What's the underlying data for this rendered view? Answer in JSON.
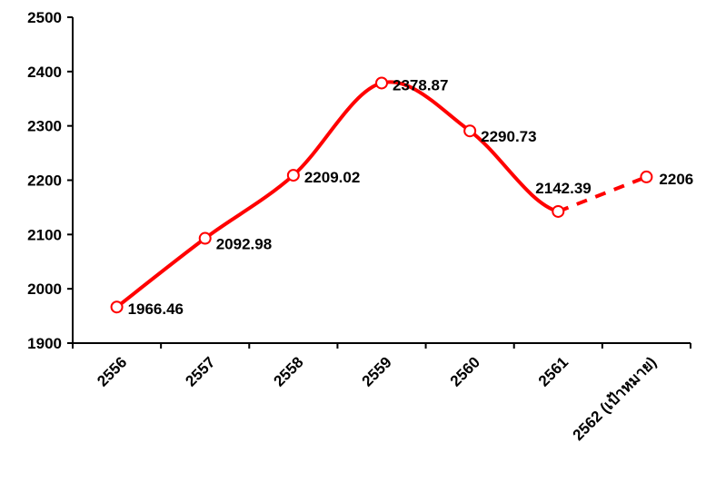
{
  "chart_data": {
    "type": "line",
    "categories": [
      "2556",
      "2557",
      "2558",
      "2559",
      "2560",
      "2561",
      "2562 (เป้าหมาย)"
    ],
    "series": [
      {
        "values": [
          1966.46,
          2092.98,
          2209.02,
          2378.87,
          2290.73,
          2142.39,
          2206
        ],
        "data_labels": [
          "1966.46",
          "2092.98",
          "2209.02",
          "2378.87",
          "2290.73",
          "2142.39",
          "2206"
        ],
        "color": "#ff0000",
        "smooth": true,
        "dashed_last_segment": true
      }
    ],
    "ylim": [
      1900,
      2500
    ],
    "y_ticks": [
      "1900",
      "2000",
      "2100",
      "2200",
      "2300",
      "2400",
      "2500"
    ],
    "grid": false,
    "legend": "none",
    "marker": "open-circle"
  }
}
